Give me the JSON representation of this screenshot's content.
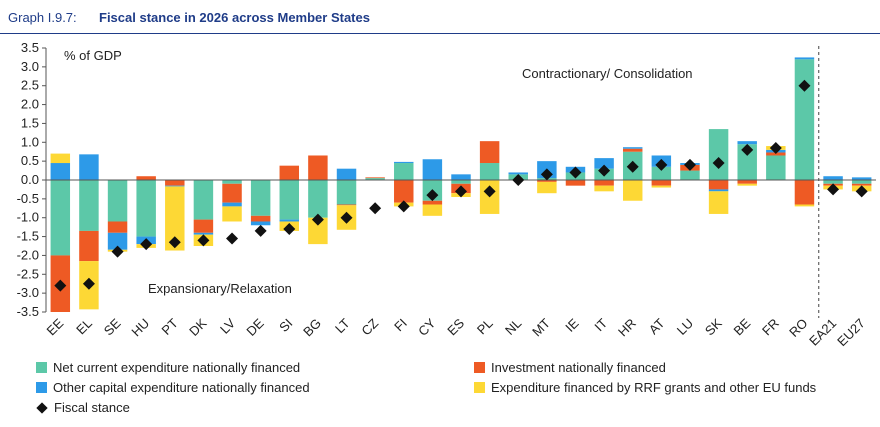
{
  "header": {
    "graph_number": "Graph I.9.7:",
    "title": "Fiscal stance in 2026 across Member States"
  },
  "colors": {
    "net_current": "#5cc8a8",
    "investment": "#ee5a24",
    "other_capital": "#2d9ae8",
    "rrf": "#fdd835",
    "fiscal_stance": "#111111",
    "header": "#1f3c88"
  },
  "chart_data": {
    "type": "bar",
    "stacked": true,
    "ylabel": "% of GDP",
    "ylim": [
      -3.5,
      3.5
    ],
    "yticks": [
      "3.5",
      "3.0",
      "2.5",
      "2.0",
      "1.5",
      "1.0",
      "0.5",
      "0.0",
      "-0.5",
      "-1.0",
      "-1.5",
      "-2.0",
      "-2.5",
      "-3.0",
      "-3.5"
    ],
    "annotations": {
      "top": "Contractionary/ Consolidation",
      "bottom": "Expansionary/Relaxation"
    },
    "categories": [
      "EE",
      "EL",
      "SE",
      "HU",
      "PT",
      "DK",
      "LV",
      "DE",
      "SI",
      "BG",
      "LT",
      "CZ",
      "FI",
      "CY",
      "ES",
      "PL",
      "NL",
      "MT",
      "IE",
      "IT",
      "HR",
      "AT",
      "LU",
      "SK",
      "BE",
      "FR",
      "RO",
      "EA21",
      "EU27"
    ],
    "series": [
      {
        "name": "Net  current expenditure nationally financed",
        "key": "net_current",
        "values": [
          -2.0,
          -1.35,
          -1.1,
          -1.5,
          0.0,
          -1.05,
          -0.1,
          -0.95,
          -1.05,
          -1.0,
          -0.65,
          0.05,
          0.45,
          -0.55,
          -0.1,
          0.45,
          0.15,
          0.05,
          0.2,
          0.3,
          0.75,
          0.35,
          0.25,
          1.35,
          0.95,
          0.65,
          3.2,
          -0.1,
          -0.1
        ]
      },
      {
        "name": "Investment nationally financed",
        "key": "investment",
        "values": [
          -1.5,
          -0.8,
          -0.3,
          0.1,
          -0.15,
          -0.35,
          -0.5,
          -0.15,
          0.38,
          0.65,
          -0.02,
          0.02,
          -0.6,
          -0.1,
          -0.25,
          0.58,
          0.0,
          -0.05,
          -0.15,
          -0.15,
          0.08,
          -0.15,
          0.15,
          -0.25,
          -0.1,
          0.08,
          -0.65,
          -0.05,
          -0.05
        ]
      },
      {
        "name": "Other capital expenditure nationally financed",
        "key": "other_capital",
        "values": [
          0.45,
          0.68,
          -0.45,
          -0.2,
          -0.02,
          -0.05,
          -0.1,
          -0.1,
          -0.05,
          0.0,
          0.3,
          0.0,
          0.03,
          0.55,
          0.15,
          0.0,
          0.05,
          0.45,
          0.15,
          0.28,
          0.04,
          0.3,
          0.05,
          -0.05,
          0.08,
          0.07,
          0.05,
          0.1,
          0.07
        ]
      },
      {
        "name": "Expenditure financed by RRF grants and other EU funds",
        "key": "rrf",
        "values": [
          0.25,
          -1.28,
          -0.05,
          -0.1,
          -1.7,
          -0.3,
          -0.4,
          0.0,
          -0.25,
          -0.7,
          -0.65,
          0.0,
          -0.1,
          -0.3,
          -0.1,
          -0.9,
          0.0,
          -0.3,
          0.0,
          -0.15,
          -0.55,
          -0.05,
          0.0,
          -0.6,
          -0.05,
          0.1,
          -0.05,
          -0.1,
          -0.15
        ]
      }
    ],
    "fiscal_stance": {
      "name": "Fiscal stance",
      "values": [
        -2.8,
        -2.75,
        -1.9,
        -1.7,
        -1.65,
        -1.6,
        -1.55,
        -1.35,
        -1.3,
        -1.05,
        -1.0,
        -0.75,
        -0.7,
        -0.4,
        -0.3,
        -0.3,
        0.0,
        0.15,
        0.2,
        0.25,
        0.35,
        0.4,
        0.4,
        0.45,
        0.8,
        0.85,
        2.5,
        -0.25,
        -0.3
      ]
    },
    "separator_before": "EA21",
    "grid": false,
    "legend": {
      "position": "bottom",
      "items": [
        {
          "label": "Net  current expenditure nationally financed",
          "key": "net_current"
        },
        {
          "label": "Investment nationally financed",
          "key": "investment"
        },
        {
          "label": "Other capital expenditure nationally financed",
          "key": "other_capital"
        },
        {
          "label": "Expenditure financed by RRF grants and other EU funds",
          "key": "rrf"
        },
        {
          "label": "Fiscal stance",
          "key": "fiscal_stance"
        }
      ]
    }
  }
}
